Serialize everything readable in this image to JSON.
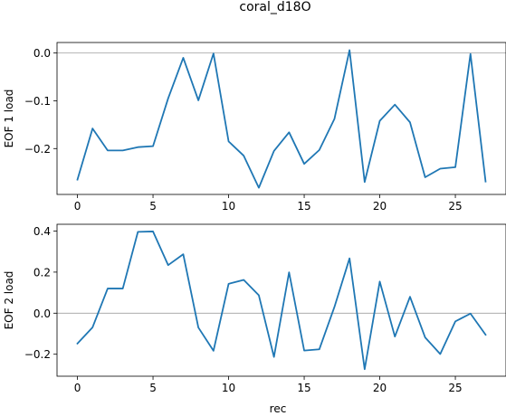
{
  "title": "coral_d18O",
  "colors": {
    "line": "#1f77b4",
    "zero_line": "#a0a0a0",
    "axes": "#000000"
  },
  "chart_data": [
    {
      "type": "line",
      "ylabel": "EOF 1 load",
      "xlabel": "",
      "x": [
        0,
        1,
        2,
        3,
        4,
        5,
        6,
        7,
        8,
        9,
        10,
        11,
        12,
        13,
        14,
        15,
        16,
        17,
        18,
        19,
        20,
        21,
        22,
        23,
        24,
        25,
        26,
        27
      ],
      "series": [
        {
          "values": [
            -0.265,
            -0.158,
            -0.204,
            -0.204,
            -0.197,
            -0.195,
            -0.095,
            -0.01,
            -0.099,
            -0.001,
            -0.185,
            -0.215,
            -0.282,
            -0.205,
            -0.166,
            -0.232,
            -0.203,
            -0.138,
            0.006,
            -0.27,
            -0.142,
            -0.108,
            -0.145,
            -0.26,
            -0.242,
            -0.239,
            -0.002,
            -0.269
          ]
        }
      ],
      "xlim": [
        -1.35,
        28.35
      ],
      "ylim": [
        -0.296,
        0.022
      ],
      "xticks": [
        0,
        5,
        10,
        15,
        20,
        25
      ],
      "xtick_labels": [
        "0",
        "5",
        "10",
        "15",
        "20",
        "25"
      ],
      "yticks": [
        0.0,
        -0.1,
        -0.2
      ],
      "ytick_labels": [
        "0.0",
        "−0.1",
        "−0.2"
      ],
      "zero_line": true,
      "grid": false
    },
    {
      "type": "line",
      "ylabel": "EOF 2 load",
      "xlabel": "rec",
      "x": [
        0,
        1,
        2,
        3,
        4,
        5,
        6,
        7,
        8,
        9,
        10,
        11,
        12,
        13,
        14,
        15,
        16,
        17,
        18,
        19,
        20,
        21,
        22,
        23,
        24,
        25,
        26,
        27
      ],
      "series": [
        {
          "values": [
            -0.148,
            -0.069,
            0.12,
            0.12,
            0.396,
            0.398,
            0.234,
            0.287,
            -0.07,
            -0.183,
            0.143,
            0.162,
            0.087,
            -0.213,
            0.199,
            -0.182,
            -0.176,
            0.03,
            0.267,
            -0.273,
            0.154,
            -0.114,
            0.08,
            -0.118,
            -0.199,
            -0.04,
            -0.002,
            -0.105
          ]
        }
      ],
      "xlim": [
        -1.35,
        28.35
      ],
      "ylim": [
        -0.307,
        0.433
      ],
      "xticks": [
        0,
        5,
        10,
        15,
        20,
        25
      ],
      "xtick_labels": [
        "0",
        "5",
        "10",
        "15",
        "20",
        "25"
      ],
      "yticks": [
        0.4,
        0.2,
        0.0,
        -0.2
      ],
      "ytick_labels": [
        "0.4",
        "0.2",
        "0.0",
        "−0.2"
      ],
      "zero_line": true,
      "grid": false
    }
  ]
}
